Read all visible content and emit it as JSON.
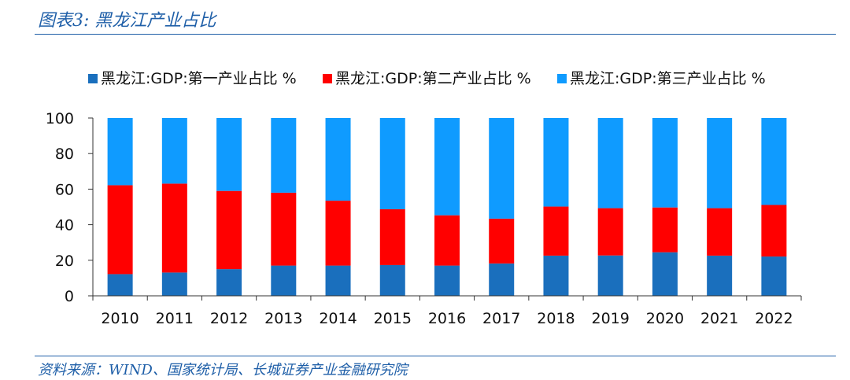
{
  "header": {
    "title": "图表3:  黑龙江产业占比"
  },
  "footer": {
    "source": "资料来源：WIND、国家统计局、长城证券产业金融研究院"
  },
  "colors": {
    "primary": "#1a6fbd",
    "secondary": "#ff0000",
    "tertiary": "#0f9bff",
    "accent": "#1f5fa8"
  },
  "chart_data": {
    "type": "bar",
    "stacked": true,
    "title": "",
    "xlabel": "",
    "ylabel": "",
    "ylim": [
      0,
      100
    ],
    "yticks": [
      0,
      20,
      40,
      60,
      80,
      100
    ],
    "legend_position": "top",
    "categories": [
      "2010",
      "2011",
      "2012",
      "2013",
      "2014",
      "2015",
      "2016",
      "2017",
      "2018",
      "2019",
      "2020",
      "2021",
      "2022"
    ],
    "series": [
      {
        "name": "黑龙江:GDP:第一产业占比 %",
        "color": "#1a6fbd",
        "values": [
          12.2,
          13.1,
          15.0,
          17.0,
          17.0,
          17.3,
          17.0,
          18.2,
          22.6,
          22.7,
          24.5,
          22.6,
          22.1
        ]
      },
      {
        "name": "黑龙江:GDP:第二产业占比 %",
        "color": "#ff0000",
        "values": [
          50.0,
          50.0,
          44.0,
          41.0,
          36.5,
          31.4,
          28.3,
          25.2,
          27.6,
          26.6,
          25.2,
          26.7,
          29.0
        ]
      },
      {
        "name": "黑龙江:GDP:第三产业占比 %",
        "color": "#0f9bff",
        "values": [
          37.8,
          36.9,
          41.0,
          42.0,
          46.5,
          51.3,
          54.7,
          56.6,
          49.8,
          50.7,
          50.3,
          50.7,
          48.9
        ]
      }
    ]
  }
}
